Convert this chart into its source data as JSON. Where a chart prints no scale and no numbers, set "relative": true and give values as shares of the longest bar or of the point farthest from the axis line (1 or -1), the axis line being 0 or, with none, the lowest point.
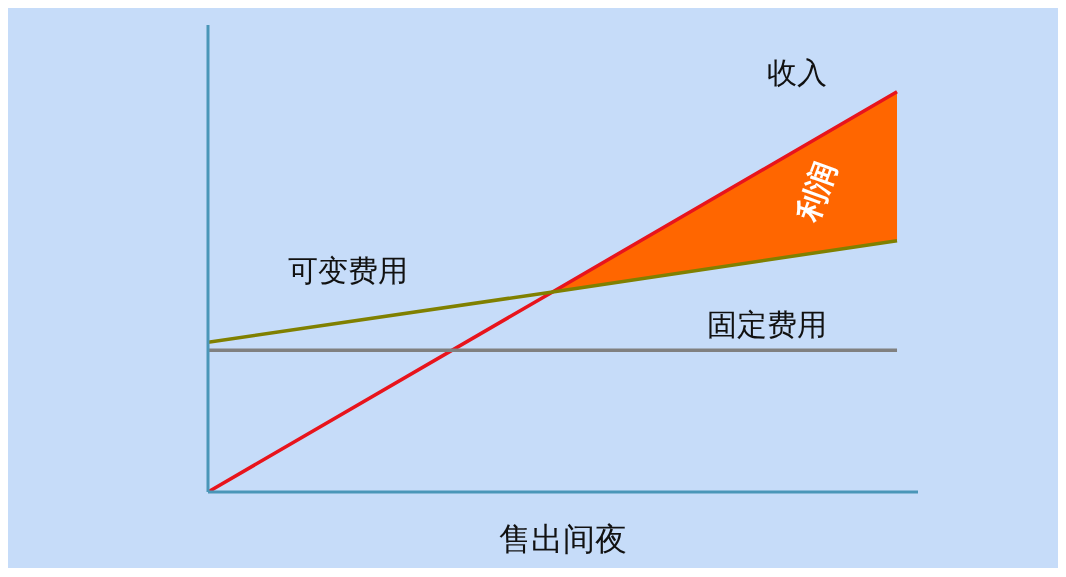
{
  "chart_data": {
    "type": "line",
    "relative": true,
    "xlabel": "售出间夜",
    "categories": [
      null,
      null,
      null
    ],
    "grid": false,
    "legend": false,
    "annotations": [
      "利润"
    ],
    "marker": "none",
    "line_style": "solid",
    "series": [
      {
        "name": "收入",
        "color": "#e8141c",
        "values": [
          0,
          0.5,
          1
        ],
        "lower": [
          null,
          0.5,
          0.628
        ],
        "upper": [
          null,
          0.5,
          1
        ]
      },
      {
        "name": "可变费用",
        "color": "#808000",
        "values": [
          0.374,
          0.5,
          0.628
        ]
      },
      {
        "name": "固定费用",
        "color": "#808080",
        "values": [
          0.354,
          0.354,
          0.354
        ]
      }
    ]
  }
}
